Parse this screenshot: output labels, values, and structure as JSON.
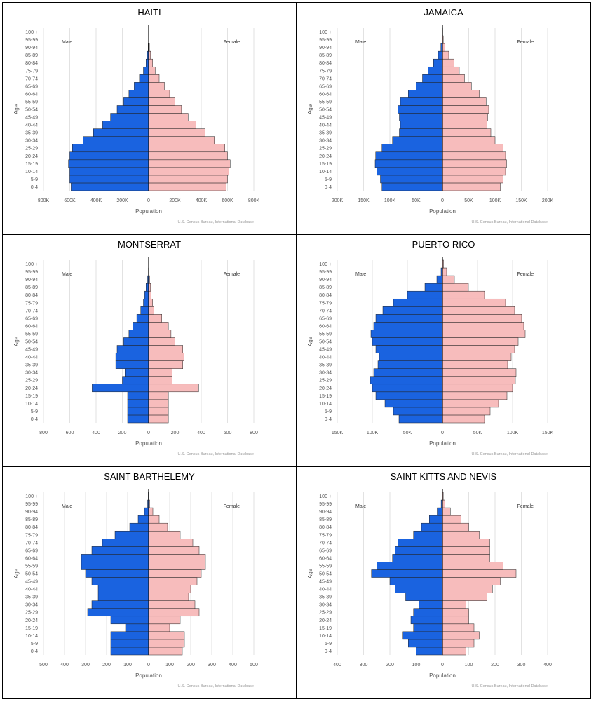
{
  "age_groups": [
    "0-4",
    "5-9",
    "10-14",
    "15-19",
    "20-24",
    "25-29",
    "30-34",
    "35-39",
    "40-44",
    "45-49",
    "50-54",
    "55-59",
    "60-64",
    "65-69",
    "70-74",
    "75-79",
    "80-84",
    "85-89",
    "90-94",
    "95-99",
    "100 +"
  ],
  "labels": {
    "male": "Male",
    "female": "Female",
    "ylabel": "Age",
    "xlabel": "Population",
    "source": "U.S. Census Bureau, International Database"
  },
  "colors": {
    "male": "#1a63e0",
    "female": "#f7bcbc",
    "outline": "#222222",
    "grid": "#e2e2e2"
  },
  "chart_data": [
    {
      "type": "bar",
      "orientation": "horizontal-population-pyramid",
      "title": "HAITI",
      "xlim": [
        -800000,
        800000
      ],
      "ticks": [
        -800000,
        -600000,
        -400000,
        -200000,
        0,
        200000,
        400000,
        600000,
        800000
      ],
      "tick_labels": [
        "800K",
        "600K",
        "400K",
        "200K",
        "0",
        "200K",
        "400K",
        "600K",
        "800K"
      ],
      "series": [
        {
          "name": "Male",
          "values": [
            590000,
            600000,
            600000,
            610000,
            600000,
            580000,
            500000,
            420000,
            350000,
            290000,
            240000,
            190000,
            150000,
            110000,
            70000,
            40000,
            20000,
            10000,
            4000,
            1000,
            300
          ]
        },
        {
          "name": "Female",
          "values": [
            590000,
            600000,
            610000,
            620000,
            600000,
            580000,
            500000,
            430000,
            360000,
            300000,
            250000,
            200000,
            160000,
            120000,
            80000,
            50000,
            30000,
            15000,
            6000,
            1500,
            400
          ]
        }
      ]
    },
    {
      "type": "bar",
      "orientation": "horizontal-population-pyramid",
      "title": "JAMAICA",
      "xlim": [
        -200000,
        200000
      ],
      "ticks": [
        -200000,
        -150000,
        -100000,
        -50000,
        0,
        50000,
        100000,
        150000,
        200000
      ],
      "tick_labels": [
        "200K",
        "150K",
        "100K",
        "50K",
        "0",
        "50K",
        "100K",
        "150K",
        "200K"
      ],
      "series": [
        {
          "name": "Male",
          "values": [
            115000,
            118000,
            125000,
            128000,
            127000,
            115000,
            95000,
            82000,
            80000,
            82000,
            85000,
            80000,
            65000,
            50000,
            38000,
            27000,
            17000,
            8000,
            3000,
            800,
            200
          ]
        },
        {
          "name": "Female",
          "values": [
            110000,
            115000,
            120000,
            122000,
            120000,
            115000,
            100000,
            92000,
            85000,
            86000,
            88000,
            83000,
            70000,
            55000,
            42000,
            32000,
            22000,
            12000,
            5000,
            1500,
            400
          ]
        }
      ]
    },
    {
      "type": "bar",
      "orientation": "horizontal-population-pyramid",
      "title": "MONTSERRAT",
      "xlim": [
        -800,
        800
      ],
      "ticks": [
        -800,
        -600,
        -400,
        -200,
        0,
        200,
        400,
        600,
        800
      ],
      "tick_labels": [
        "800",
        "600",
        "400",
        "200",
        "0",
        "200",
        "400",
        "600",
        "800"
      ],
      "series": [
        {
          "name": "Male",
          "values": [
            160,
            160,
            160,
            160,
            430,
            200,
            180,
            250,
            250,
            240,
            190,
            150,
            120,
            90,
            60,
            40,
            30,
            20,
            8,
            2,
            1
          ]
        },
        {
          "name": "Female",
          "values": [
            150,
            150,
            150,
            150,
            380,
            180,
            180,
            260,
            270,
            260,
            200,
            170,
            150,
            100,
            40,
            30,
            20,
            15,
            8,
            2,
            1
          ]
        }
      ]
    },
    {
      "type": "bar",
      "orientation": "horizontal-population-pyramid",
      "title": "PUERTO RICO",
      "xlim": [
        -150000,
        150000
      ],
      "ticks": [
        -150000,
        -100000,
        -50000,
        0,
        50000,
        100000,
        150000
      ],
      "tick_labels": [
        "150K",
        "100K",
        "50K",
        "0",
        "50K",
        "100K",
        "150K"
      ],
      "series": [
        {
          "name": "Male",
          "values": [
            62000,
            70000,
            82000,
            95000,
            100000,
            103000,
            98000,
            92000,
            90000,
            95000,
            100000,
            102000,
            98000,
            95000,
            85000,
            70000,
            50000,
            25000,
            8000,
            2000,
            400
          ]
        },
        {
          "name": "Female",
          "values": [
            60000,
            68000,
            80000,
            92000,
            100000,
            104000,
            105000,
            93000,
            98000,
            103000,
            108000,
            118000,
            116000,
            113000,
            103000,
            90000,
            60000,
            37000,
            17000,
            6000,
            1500
          ]
        }
      ]
    },
    {
      "type": "bar",
      "orientation": "horizontal-population-pyramid",
      "title": "SAINT BARTHELEMY",
      "xlim": [
        -500,
        500
      ],
      "ticks": [
        -500,
        -400,
        -300,
        -200,
        -100,
        0,
        100,
        200,
        300,
        400,
        500
      ],
      "tick_labels": [
        "500",
        "400",
        "300",
        "200",
        "100",
        "0",
        "100",
        "200",
        "300",
        "400",
        "500"
      ],
      "series": [
        {
          "name": "Male",
          "values": [
            180,
            180,
            180,
            110,
            180,
            290,
            270,
            240,
            240,
            270,
            300,
            320,
            320,
            270,
            220,
            160,
            90,
            50,
            20,
            5,
            2
          ]
        },
        {
          "name": "Female",
          "values": [
            160,
            170,
            170,
            100,
            150,
            240,
            220,
            190,
            200,
            230,
            250,
            270,
            270,
            240,
            210,
            150,
            90,
            50,
            20,
            5,
            2
          ]
        }
      ]
    },
    {
      "type": "bar",
      "orientation": "horizontal-population-pyramid",
      "title": "SAINT KITTS AND NEVIS",
      "xlim": [
        -400,
        400
      ],
      "ticks": [
        -400,
        -300,
        -200,
        -100,
        0,
        100,
        200,
        300,
        400
      ],
      "tick_labels": [
        "400",
        "300",
        "200",
        "100",
        "0",
        "100",
        "200",
        "300",
        "400"
      ],
      "series": [
        {
          "name": "Male",
          "values": [
            100,
            130,
            150,
            110,
            120,
            110,
            90,
            140,
            180,
            200,
            270,
            250,
            190,
            180,
            170,
            110,
            80,
            50,
            20,
            5,
            2
          ]
        },
        {
          "name": "Female",
          "values": [
            90,
            120,
            140,
            120,
            100,
            100,
            90,
            170,
            190,
            220,
            280,
            230,
            180,
            180,
            180,
            140,
            100,
            70,
            30,
            10,
            3
          ]
        }
      ]
    }
  ]
}
